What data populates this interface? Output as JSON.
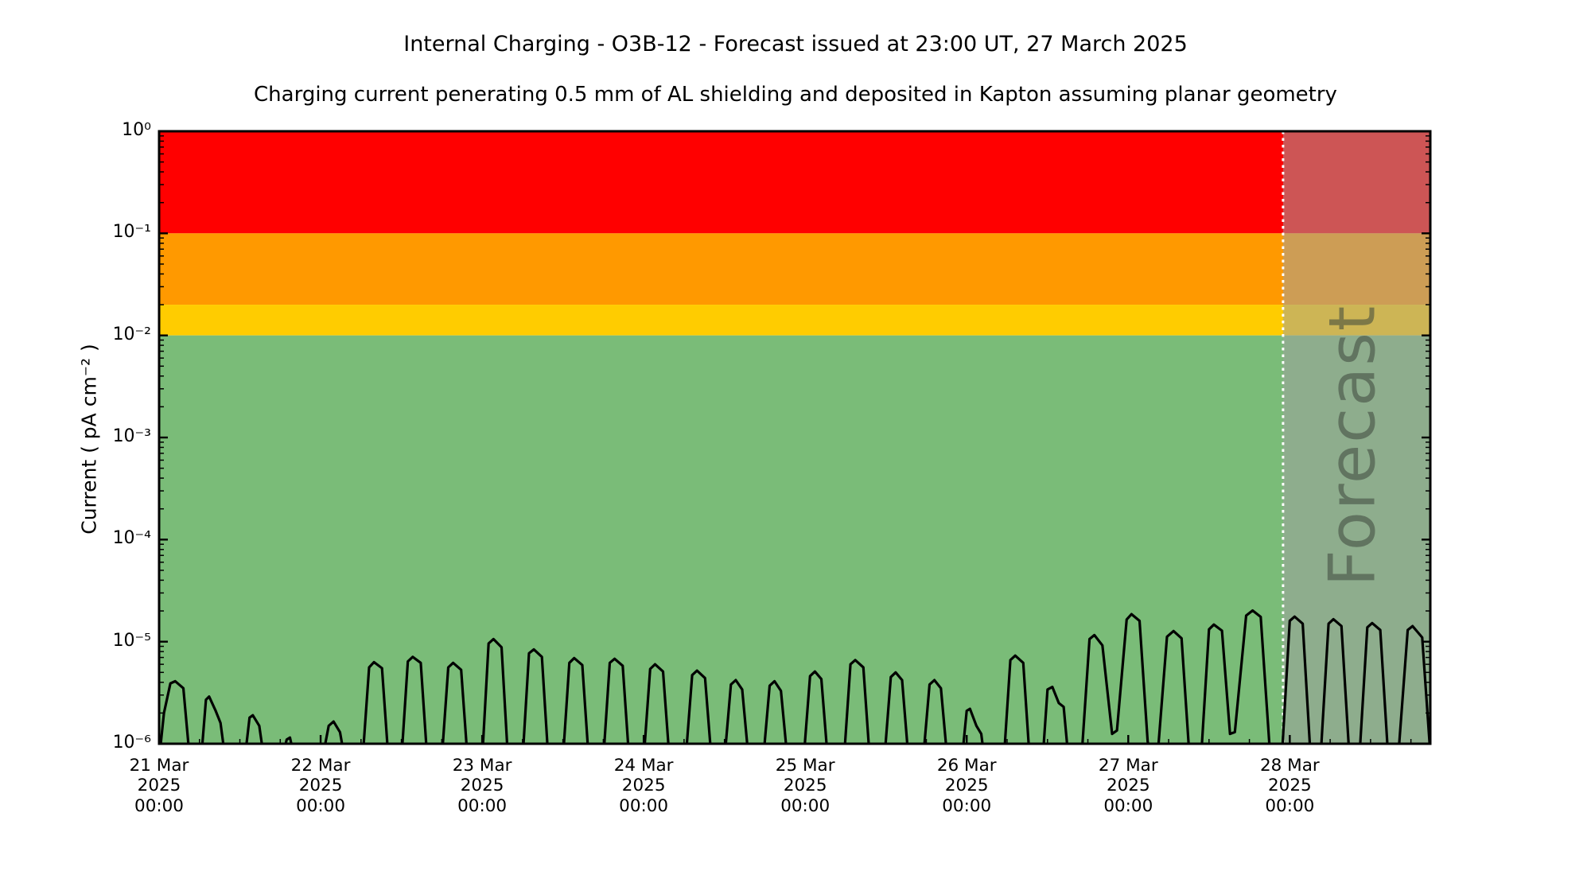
{
  "header": {
    "title": "Internal Charging - O3B-12 - Forecast issued at 23:00 UT, 27 March 2025",
    "subtitle": "Charging current penerating 0.5 mm of AL shielding and deposited in Kapton assuming planar geometry"
  },
  "chart_data": {
    "type": "line",
    "title": "Internal Charging - O3B-12 - Forecast issued at 23:00 UT, 27 March 2025",
    "subtitle": "Charging current penerating 0.5 mm of AL shielding and deposited in Kapton assuming planar geometry",
    "ylabel": "Current ( pA cm⁻² )",
    "y_axis": {
      "scale": "log",
      "range": [
        1e-06,
        1
      ],
      "ticks": [
        {
          "exp": 0,
          "label": "10⁰"
        },
        {
          "exp": -1,
          "label": "10⁻¹"
        },
        {
          "exp": -2,
          "label": "10⁻²"
        },
        {
          "exp": -3,
          "label": "10⁻³"
        },
        {
          "exp": -4,
          "label": "10⁻⁴"
        },
        {
          "exp": -5,
          "label": "10⁻⁵"
        },
        {
          "exp": -6,
          "label": "10⁻⁶"
        }
      ]
    },
    "x_axis": {
      "unit": "days since 21 Mar 2025 00:00 UT",
      "range_days": [
        0,
        7.87
      ],
      "minor_tick_hours": 6,
      "major_ticks": [
        {
          "day": 0,
          "label": "21 Mar\n2025\n00:00"
        },
        {
          "day": 1,
          "label": "22 Mar\n2025\n00:00"
        },
        {
          "day": 2,
          "label": "23 Mar\n2025\n00:00"
        },
        {
          "day": 3,
          "label": "24 Mar\n2025\n00:00"
        },
        {
          "day": 4,
          "label": "25 Mar\n2025\n00:00"
        },
        {
          "day": 5,
          "label": "26 Mar\n2025\n00:00"
        },
        {
          "day": 6,
          "label": "27 Mar\n2025\n00:00"
        },
        {
          "day": 7,
          "label": "28 Mar\n2025\n00:00"
        }
      ]
    },
    "bands": [
      {
        "name": "red",
        "from": 0.1,
        "to": 1.0,
        "color": "#ff0000"
      },
      {
        "name": "orange",
        "from": 0.02,
        "to": 0.1,
        "color": "#ff9900"
      },
      {
        "name": "yellow",
        "from": 0.01,
        "to": 0.02,
        "color": "#ffcc00"
      },
      {
        "name": "green",
        "from": 1e-06,
        "to": 0.01,
        "color": "#7abc78"
      }
    ],
    "forecast": {
      "label": "Forecast",
      "start_day": 6.9583,
      "start_time": "27 Mar 2025 23:00 UT",
      "overlay_color": "rgba(160,160,160,0.53)",
      "divider_color": "#ffffff",
      "divider_style": "dotted"
    },
    "series": [
      {
        "name": "charging-current",
        "color": "#000000",
        "points": [
          [
            0.0,
            7e-07
          ],
          [
            0.03,
            2e-06
          ],
          [
            0.07,
            3.9e-06
          ],
          [
            0.1,
            4.1e-06
          ],
          [
            0.15,
            3.5e-06
          ],
          [
            0.19,
            7e-07
          ],
          [
            0.26,
            7e-07
          ],
          [
            0.29,
            2.7e-06
          ],
          [
            0.31,
            2.9e-06
          ],
          [
            0.35,
            2.1e-06
          ],
          [
            0.38,
            1.6e-06
          ],
          [
            0.41,
            7e-07
          ],
          [
            0.53,
            7e-07
          ],
          [
            0.56,
            1.8e-06
          ],
          [
            0.58,
            1.9e-06
          ],
          [
            0.62,
            1.5e-06
          ],
          [
            0.65,
            7e-07
          ],
          [
            0.76,
            7e-07
          ],
          [
            0.79,
            1.1e-06
          ],
          [
            0.81,
            1.15e-06
          ],
          [
            0.84,
            7e-07
          ],
          [
            1.01,
            7e-07
          ],
          [
            1.05,
            1.5e-06
          ],
          [
            1.08,
            1.65e-06
          ],
          [
            1.12,
            1.3e-06
          ],
          [
            1.15,
            7e-07
          ],
          [
            1.26,
            7e-07
          ],
          [
            1.3,
            5.6e-06
          ],
          [
            1.33,
            6.3e-06
          ],
          [
            1.38,
            5.5e-06
          ],
          [
            1.42,
            7e-07
          ],
          [
            1.5,
            7e-07
          ],
          [
            1.54,
            6.4e-06
          ],
          [
            1.57,
            7.1e-06
          ],
          [
            1.62,
            6.2e-06
          ],
          [
            1.66,
            7e-07
          ],
          [
            1.75,
            7e-07
          ],
          [
            1.79,
            5.6e-06
          ],
          [
            1.82,
            6.2e-06
          ],
          [
            1.87,
            5.3e-06
          ],
          [
            1.91,
            7e-07
          ],
          [
            2.0,
            7e-07
          ],
          [
            2.04,
            9.6e-06
          ],
          [
            2.07,
            1.06e-05
          ],
          [
            2.12,
            8.8e-06
          ],
          [
            2.16,
            7e-07
          ],
          [
            2.25,
            7e-07
          ],
          [
            2.29,
            7.7e-06
          ],
          [
            2.32,
            8.4e-06
          ],
          [
            2.37,
            7.1e-06
          ],
          [
            2.41,
            7e-07
          ],
          [
            2.5,
            7e-07
          ],
          [
            2.54,
            6.2e-06
          ],
          [
            2.57,
            6.9e-06
          ],
          [
            2.62,
            5.9e-06
          ],
          [
            2.66,
            7e-07
          ],
          [
            2.75,
            7e-07
          ],
          [
            2.79,
            6.2e-06
          ],
          [
            2.82,
            6.8e-06
          ],
          [
            2.87,
            5.8e-06
          ],
          [
            2.91,
            7e-07
          ],
          [
            3.0,
            7e-07
          ],
          [
            3.04,
            5.4e-06
          ],
          [
            3.07,
            6e-06
          ],
          [
            3.12,
            5.1e-06
          ],
          [
            3.16,
            7e-07
          ],
          [
            3.26,
            7e-07
          ],
          [
            3.3,
            4.7e-06
          ],
          [
            3.33,
            5.2e-06
          ],
          [
            3.38,
            4.4e-06
          ],
          [
            3.42,
            7e-07
          ],
          [
            3.5,
            7e-07
          ],
          [
            3.54,
            3.8e-06
          ],
          [
            3.57,
            4.2e-06
          ],
          [
            3.61,
            3.4e-06
          ],
          [
            3.65,
            7e-07
          ],
          [
            3.74,
            7e-07
          ],
          [
            3.78,
            3.7e-06
          ],
          [
            3.81,
            4.1e-06
          ],
          [
            3.85,
            3.3e-06
          ],
          [
            3.89,
            7e-07
          ],
          [
            3.99,
            7e-07
          ],
          [
            4.03,
            4.6e-06
          ],
          [
            4.06,
            5.1e-06
          ],
          [
            4.1,
            4.3e-06
          ],
          [
            4.14,
            7e-07
          ],
          [
            4.24,
            7e-07
          ],
          [
            4.28,
            6e-06
          ],
          [
            4.31,
            6.6e-06
          ],
          [
            4.36,
            5.6e-06
          ],
          [
            4.4,
            7e-07
          ],
          [
            4.49,
            7e-07
          ],
          [
            4.53,
            4.5e-06
          ],
          [
            4.56,
            5e-06
          ],
          [
            4.6,
            4.2e-06
          ],
          [
            4.64,
            7e-07
          ],
          [
            4.73,
            7e-07
          ],
          [
            4.77,
            3.8e-06
          ],
          [
            4.8,
            4.2e-06
          ],
          [
            4.84,
            3.5e-06
          ],
          [
            4.88,
            7e-07
          ],
          [
            4.97,
            7e-07
          ],
          [
            5.0,
            2.1e-06
          ],
          [
            5.02,
            2.2e-06
          ],
          [
            5.06,
            1.5e-06
          ],
          [
            5.09,
            1.25e-06
          ],
          [
            5.11,
            7e-07
          ],
          [
            5.23,
            7e-07
          ],
          [
            5.27,
            6.6e-06
          ],
          [
            5.3,
            7.3e-06
          ],
          [
            5.35,
            6.2e-06
          ],
          [
            5.39,
            7e-07
          ],
          [
            5.47,
            7e-07
          ],
          [
            5.5,
            3.4e-06
          ],
          [
            5.53,
            3.6e-06
          ],
          [
            5.57,
            2.5e-06
          ],
          [
            5.6,
            2.3e-06
          ],
          [
            5.63,
            7e-07
          ],
          [
            5.71,
            7e-07
          ],
          [
            5.76,
            1.06e-05
          ],
          [
            5.79,
            1.16e-05
          ],
          [
            5.84,
            9.2e-06
          ],
          [
            5.9,
            1.25e-06
          ],
          [
            5.93,
            1.35e-06
          ],
          [
            5.99,
            1.65e-05
          ],
          [
            6.02,
            1.86e-05
          ],
          [
            6.07,
            1.6e-05
          ],
          [
            6.12,
            1.05e-06
          ],
          [
            6.14,
            8e-07
          ],
          [
            6.18,
            7e-07
          ],
          [
            6.24,
            1.12e-05
          ],
          [
            6.28,
            1.27e-05
          ],
          [
            6.33,
            1.08e-05
          ],
          [
            6.38,
            7e-07
          ],
          [
            6.45,
            7e-07
          ],
          [
            6.5,
            1.32e-05
          ],
          [
            6.53,
            1.47e-05
          ],
          [
            6.58,
            1.28e-05
          ],
          [
            6.63,
            1.25e-06
          ],
          [
            6.66,
            1.3e-06
          ],
          [
            6.73,
            1.8e-05
          ],
          [
            6.77,
            2.02e-05
          ],
          [
            6.82,
            1.75e-05
          ],
          [
            6.88,
            7e-07
          ],
          [
            6.95,
            7e-07
          ],
          [
            7.0,
            1.6e-05
          ],
          [
            7.03,
            1.76e-05
          ],
          [
            7.08,
            1.5e-05
          ],
          [
            7.13,
            7e-07
          ],
          [
            7.19,
            7e-07
          ],
          [
            7.24,
            1.5e-05
          ],
          [
            7.27,
            1.66e-05
          ],
          [
            7.32,
            1.42e-05
          ],
          [
            7.37,
            7e-07
          ],
          [
            7.43,
            7e-07
          ],
          [
            7.48,
            1.38e-05
          ],
          [
            7.51,
            1.52e-05
          ],
          [
            7.56,
            1.3e-05
          ],
          [
            7.61,
            7e-07
          ],
          [
            7.67,
            7e-07
          ],
          [
            7.73,
            1.3e-05
          ],
          [
            7.76,
            1.42e-05
          ],
          [
            7.82,
            1.1e-05
          ],
          [
            7.87,
            8e-07
          ]
        ]
      }
    ]
  }
}
